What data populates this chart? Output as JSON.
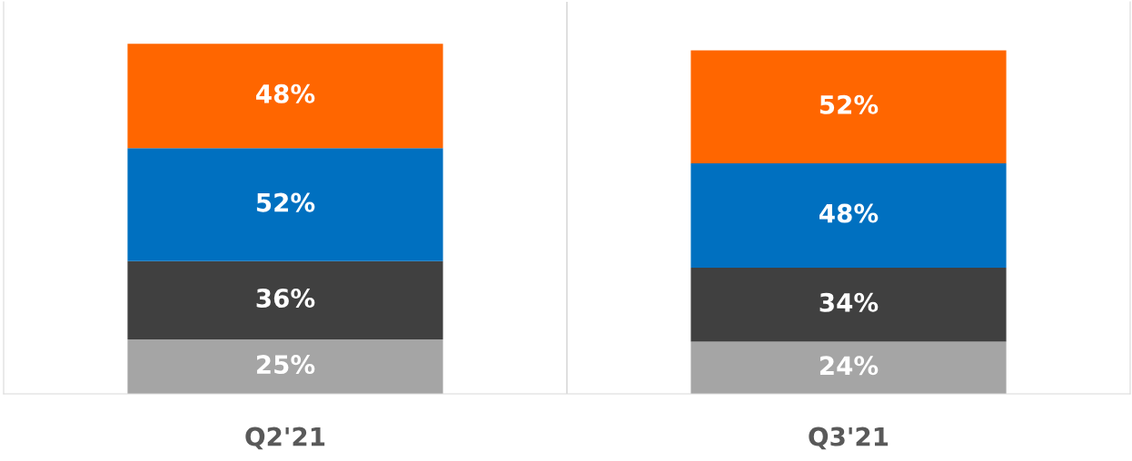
{
  "chart_data": {
    "type": "bar",
    "stacked": true,
    "categories": [
      "Q2'21",
      "Q3'21"
    ],
    "series": [
      {
        "color": "#a5a5a5",
        "values": [
          25,
          24
        ],
        "value_labels": [
          "25%",
          "24%"
        ]
      },
      {
        "color": "#404040",
        "values": [
          36,
          34
        ],
        "value_labels": [
          "36%",
          "34%"
        ]
      },
      {
        "color": "#0070c0",
        "values": [
          52,
          48
        ],
        "value_labels": [
          "52%",
          "48%"
        ]
      },
      {
        "color": "#ff6600",
        "values": [
          48,
          52
        ],
        "value_labels": [
          "48%",
          "52%"
        ]
      }
    ],
    "legend": false,
    "grid": false,
    "tick_labels": "x"
  }
}
